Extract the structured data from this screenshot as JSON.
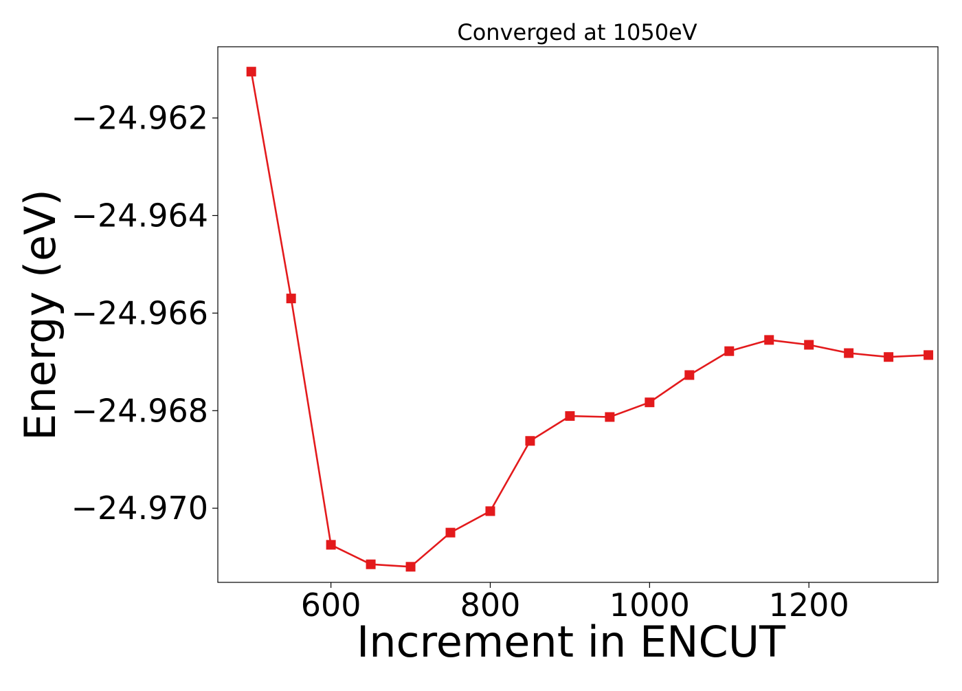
{
  "chart_data": {
    "type": "line",
    "title": "Converged at 1050eV",
    "xlabel": "Increment in ENCUT",
    "ylabel": "Energy (eV)",
    "xlim": [
      458,
      1362
    ],
    "ylim": [
      -24.97152,
      -24.96054
    ],
    "x_ticks": [
      600,
      800,
      1000,
      1200
    ],
    "x_tick_labels": [
      "600",
      "800",
      "1000",
      "1200"
    ],
    "y_ticks": [
      -24.962,
      -24.964,
      -24.966,
      -24.968,
      -24.97
    ],
    "y_tick_labels": [
      "−24.962",
      "−24.964",
      "−24.966",
      "−24.968",
      "−24.970"
    ],
    "grid": false,
    "legend": null,
    "colors": {
      "series": "#e31a1c",
      "axes": "#000000",
      "background": "#ffffff"
    },
    "marker": "square",
    "series": [
      {
        "x": [
          500,
          550,
          600,
          650,
          700,
          750,
          800,
          850,
          900,
          950,
          1000,
          1050,
          1100,
          1150,
          1200,
          1250,
          1300,
          1350
        ],
        "y": [
          -24.96105,
          -24.9657,
          -24.97075,
          -24.97115,
          -24.9712,
          -24.9705,
          -24.97006,
          -24.96862,
          -24.96811,
          -24.96813,
          -24.96783,
          -24.96727,
          -24.96678,
          -24.96655,
          -24.96665,
          -24.96682,
          -24.9669,
          -24.96686
        ]
      }
    ]
  }
}
